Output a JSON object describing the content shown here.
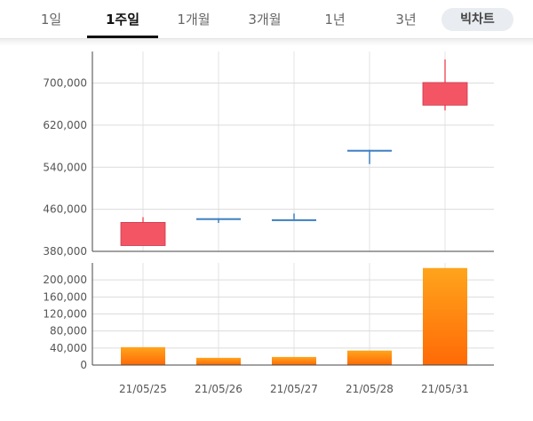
{
  "tabs": [
    {
      "label": "1일",
      "active": false
    },
    {
      "label": "1주일",
      "active": true
    },
    {
      "label": "1개월",
      "active": false
    },
    {
      "label": "3개월",
      "active": false
    },
    {
      "label": "1년",
      "active": false
    },
    {
      "label": "3년",
      "active": false
    }
  ],
  "bigchart_label": "빅차트",
  "colors": {
    "up": "#f45565",
    "down": "#3d7fc1",
    "volume_top": "#ffa41c",
    "volume_bottom": "#ff6a06"
  },
  "chart_data": [
    {
      "type": "candlestick",
      "categories": [
        "21/05/25",
        "21/05/26",
        "21/05/27",
        "21/05/28",
        "21/05/31"
      ],
      "ohlc": [
        {
          "date": "21/05/25",
          "open": 391000,
          "high": 445000,
          "low": 391000,
          "close": 435000
        },
        {
          "date": "21/05/26",
          "open": 443000,
          "high": 443000,
          "low": 434000,
          "close": 443000
        },
        {
          "date": "21/05/27",
          "open": 441000,
          "high": 452000,
          "low": 441000,
          "close": 441000
        },
        {
          "date": "21/05/28",
          "open": 573000,
          "high": 573000,
          "low": 546000,
          "close": 573000
        },
        {
          "date": "21/05/31",
          "open": 658000,
          "high": 745000,
          "low": 648000,
          "close": 701000
        }
      ],
      "yticks": [
        "380,000",
        "460,000",
        "540,000",
        "620,000",
        "700,000"
      ],
      "ylim": [
        380000,
        760000
      ],
      "grid": true
    },
    {
      "type": "bar",
      "categories": [
        "21/05/25",
        "21/05/26",
        "21/05/27",
        "21/05/28",
        "21/05/31"
      ],
      "values": [
        42000,
        17000,
        19000,
        34000,
        228000
      ],
      "yticks": [
        "0",
        "40,000",
        "80,000",
        "120,000",
        "160,000",
        "200,000"
      ],
      "ylim": [
        0,
        240000
      ],
      "grid": true
    }
  ]
}
